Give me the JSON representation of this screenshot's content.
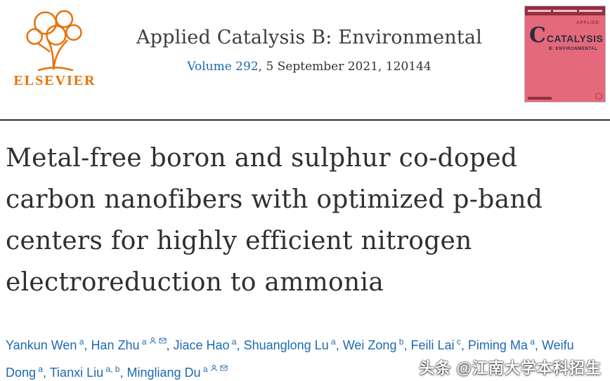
{
  "colors": {
    "elsevier_orange": "#e8710a",
    "link_blue": "#1d6ab2",
    "cover_pink": "#e4697b",
    "cover_dark": "#942f40"
  },
  "header": {
    "elsevier_logo_text": "ELSEVIER",
    "journal_title": "Applied Catalysis B: Environmental",
    "volume_link": "Volume 292",
    "issue_rest": ", 5 September 2021, 120144",
    "cover": {
      "top_text": "APPLIED",
      "title": "CATALYSIS",
      "subtitle": "B: ENVIRONMENTAL",
      "big_letter": "C"
    }
  },
  "article": {
    "title": "Metal-free boron and sulphur co-doped carbon nanofibers with optimized p-band centers for highly efficient nitrogen electroreduction to ammonia",
    "title_lines": [
      "Metal-free boron and sulphur co-doped",
      "carbon nanofibers with optimized p-band",
      "centers for highly efficient nitrogen",
      "electroreduction to ammonia"
    ],
    "authors": [
      {
        "name": "Yankun Wen",
        "sup": "a",
        "person": false,
        "mail": false
      },
      {
        "name": "Han Zhu",
        "sup": "a",
        "person": true,
        "mail": true
      },
      {
        "name": "Jiace Hao",
        "sup": "a",
        "person": false,
        "mail": false
      },
      {
        "name": "Shuanglong Lu",
        "sup": "a",
        "person": false,
        "mail": false
      },
      {
        "name": "Wei Zong",
        "sup": "b",
        "person": false,
        "mail": false
      },
      {
        "name": "Feili Lai",
        "sup": "c",
        "person": false,
        "mail": false
      },
      {
        "name": "Piming Ma",
        "sup": "a",
        "person": false,
        "mail": false
      },
      {
        "name": "Weifu Dong",
        "sup": "a",
        "person": false,
        "mail": false
      },
      {
        "name": "Tianxi Liu",
        "sup": "a, b",
        "person": false,
        "mail": false
      },
      {
        "name": "Mingliang Du",
        "sup": "a",
        "person": true,
        "mail": true
      }
    ]
  },
  "watermark": "头条 @江南大学本科招生"
}
